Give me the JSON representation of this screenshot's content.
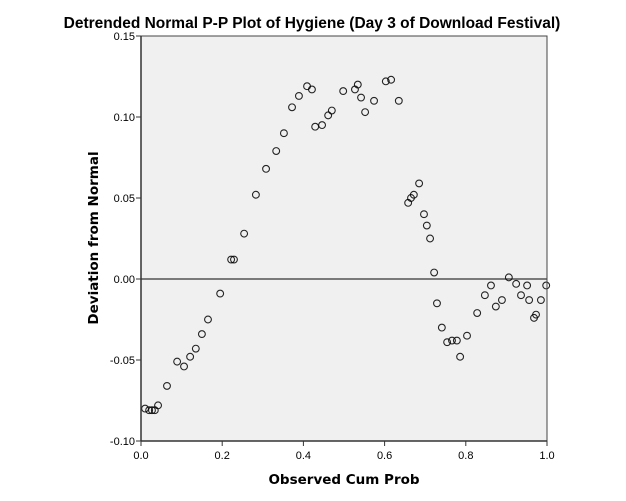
{
  "chart_data": {
    "type": "scatter",
    "title": "Detrended Normal P-P Plot of Hygiene (Day 3 of Download Festival)",
    "xlabel": "Observed Cum Prob",
    "ylabel": "Deviation from Normal",
    "xlim": [
      0.0,
      1.0
    ],
    "ylim": [
      -0.1,
      0.15
    ],
    "xticks": [
      "0.0",
      "0.2",
      "0.4",
      "0.6",
      "0.8",
      "1.0"
    ],
    "xtick_values": [
      0.0,
      0.2,
      0.4,
      0.6,
      0.8,
      1.0
    ],
    "yticks": [
      "0.15",
      "0.10",
      "0.05",
      "0.00",
      "-0.05",
      "-0.10"
    ],
    "ytick_values": [
      0.15,
      0.1,
      0.05,
      0.0,
      -0.05,
      -0.1
    ],
    "reference_line": 0.0,
    "grid": false,
    "plot_background": "#f0f0f0",
    "marker_color": "#000000",
    "points": [
      [
        0.01,
        -0.08
      ],
      [
        0.02,
        -0.081
      ],
      [
        0.027,
        -0.081
      ],
      [
        0.034,
        -0.081
      ],
      [
        0.042,
        -0.078
      ],
      [
        0.064,
        -0.066
      ],
      [
        0.089,
        -0.051
      ],
      [
        0.106,
        -0.054
      ],
      [
        0.121,
        -0.048
      ],
      [
        0.135,
        -0.043
      ],
      [
        0.15,
        -0.034
      ],
      [
        0.165,
        -0.025
      ],
      [
        0.195,
        -0.009
      ],
      [
        0.222,
        0.012
      ],
      [
        0.229,
        0.012
      ],
      [
        0.254,
        0.028
      ],
      [
        0.283,
        0.052
      ],
      [
        0.308,
        0.068
      ],
      [
        0.333,
        0.079
      ],
      [
        0.352,
        0.09
      ],
      [
        0.372,
        0.106
      ],
      [
        0.389,
        0.113
      ],
      [
        0.409,
        0.119
      ],
      [
        0.421,
        0.117
      ],
      [
        0.429,
        0.094
      ],
      [
        0.446,
        0.095
      ],
      [
        0.461,
        0.101
      ],
      [
        0.47,
        0.104
      ],
      [
        0.498,
        0.116
      ],
      [
        0.527,
        0.117
      ],
      [
        0.534,
        0.12
      ],
      [
        0.542,
        0.112
      ],
      [
        0.552,
        0.103
      ],
      [
        0.574,
        0.11
      ],
      [
        0.603,
        0.122
      ],
      [
        0.616,
        0.123
      ],
      [
        0.635,
        0.11
      ],
      [
        0.658,
        0.047
      ],
      [
        0.665,
        0.05
      ],
      [
        0.672,
        0.052
      ],
      [
        0.685,
        0.059
      ],
      [
        0.697,
        0.04
      ],
      [
        0.704,
        0.033
      ],
      [
        0.712,
        0.025
      ],
      [
        0.722,
        0.004
      ],
      [
        0.729,
        -0.015
      ],
      [
        0.741,
        -0.03
      ],
      [
        0.754,
        -0.039
      ],
      [
        0.766,
        -0.038
      ],
      [
        0.778,
        -0.038
      ],
      [
        0.786,
        -0.048
      ],
      [
        0.803,
        -0.035
      ],
      [
        0.828,
        -0.021
      ],
      [
        0.847,
        -0.01
      ],
      [
        0.862,
        -0.004
      ],
      [
        0.874,
        -0.017
      ],
      [
        0.889,
        -0.013
      ],
      [
        0.906,
        0.001
      ],
      [
        0.924,
        -0.003
      ],
      [
        0.936,
        -0.01
      ],
      [
        0.951,
        -0.004
      ],
      [
        0.956,
        -0.013
      ],
      [
        0.968,
        -0.024
      ],
      [
        0.973,
        -0.022
      ],
      [
        0.985,
        -0.013
      ],
      [
        0.998,
        -0.004
      ]
    ]
  }
}
